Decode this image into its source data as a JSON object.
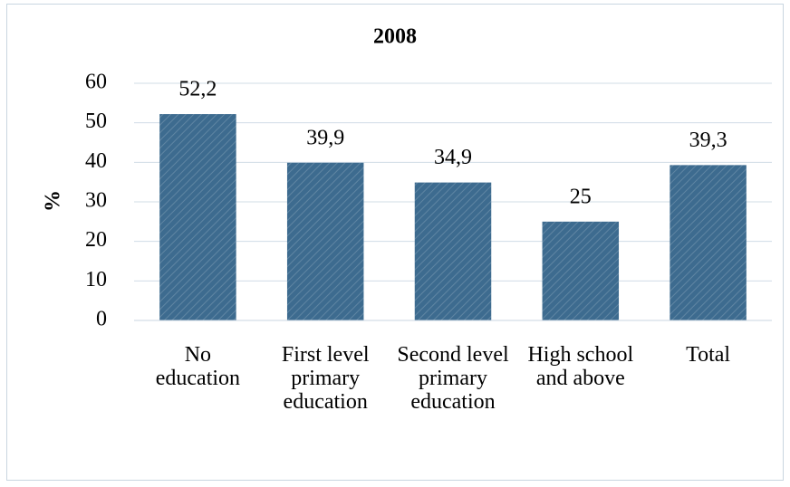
{
  "chart_data": {
    "type": "bar",
    "title": "2008",
    "y_label": "%",
    "categories": [
      "No education",
      "First level primary education",
      "Second level primary education",
      "High school and above",
      "Total"
    ],
    "values": [
      52.2,
      39.9,
      34.9,
      25,
      39.3
    ],
    "value_labels": [
      "52,2",
      "39,9",
      "34,9",
      "25",
      "39,3"
    ],
    "color": "#3d6b8f",
    "ylim": [
      0,
      60
    ],
    "yticks": [
      0,
      10,
      20,
      30,
      40,
      50,
      60
    ],
    "grid": true
  }
}
